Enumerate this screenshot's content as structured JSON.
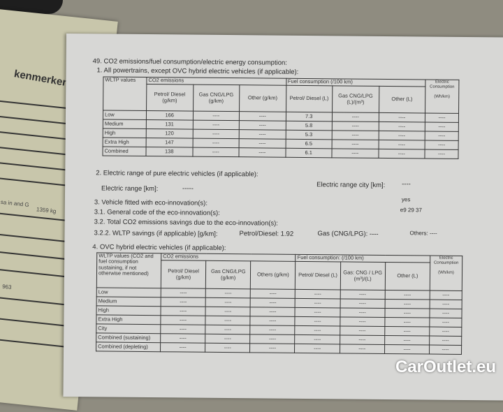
{
  "under_doc": {
    "heading": "kenmerken",
    "mass_label": "sa in\nand G",
    "mass_value": "1359 kg",
    "value2": "963"
  },
  "section49": {
    "title": "49. CO2 emissions/fuel consumption/electric energy consumption:",
    "sub1": "1. All powertrains, except OVC hybrid electric vehicles (if applicable):",
    "table1": {
      "h_wltp": "WLTP values",
      "h_co2": "CO2 emissions",
      "h_fuel": "Fuel consumption (/100 km)",
      "h_elec": "Electric Consumption",
      "cols": [
        "Petrol/ Diesel (g/km)",
        "Gas CNG/LPG (g/km)",
        "Other (g/km)",
        "Petrol/ Diesel (L)",
        "Gas CNG/LPG (L)/(m³)",
        "Other (L)",
        "(Wh/km)"
      ],
      "rows": [
        {
          "label": "Low",
          "co2": "166",
          "fuel": "7.3"
        },
        {
          "label": "Medium",
          "co2": "131",
          "fuel": "5.8"
        },
        {
          "label": "High",
          "co2": "120",
          "fuel": "5.3"
        },
        {
          "label": "Extra High",
          "co2": "147",
          "fuel": "6.5"
        },
        {
          "label": "Combined",
          "co2": "138",
          "fuel": "6.1"
        }
      ],
      "dash": "----"
    },
    "s2": "2. Electric range of pure electric vehicles (if applicable):",
    "s2_range": "Electric range [km]:",
    "s2_range_val": "-----",
    "s2_city": "Electric range city [km]:",
    "s2_city_val": "----",
    "s3": "3. Vehicle fitted with eco-innovation(s):",
    "s3_val": "yes",
    "s31": "3.1. General code of the eco-innovation(s):",
    "s31_val": "e9 29 37",
    "s32": "3.2. Total CO2 emissions savings due to the eco-innovation(s):",
    "s322": "3.2.2. WLTP savings (if applicable) [g/km]:",
    "s322_petrol": "Petrol/Diesel: 1.92",
    "s322_gas": "Gas (CNG/LPG): ----",
    "s322_others": "Others: ----",
    "sub4": "4. OVC hybrid electric vehicles (if applicable):",
    "table2": {
      "h_wltp": "WLTP values (CO2 and fuel consumption sustaining, if not otherwise mentioned)",
      "h_co2": "CO2 emissions",
      "h_fuel": "Fuel consumption: (/100 km)",
      "h_elec": "Electric Consumption",
      "cols": [
        "Petrol/ Diesel (g/km)",
        "Gas CNG/LPG (g/km)",
        "Others (g/km)",
        "Petrol/ Diesel (L)",
        "Gas: CNG / LPG (m³)/(L)",
        "Other (L)",
        "(Wh/km)"
      ],
      "rows": [
        "Low",
        "Medium",
        "High",
        "Extra High",
        "City",
        "Combined (sustaining)",
        "Combined (depleting)"
      ],
      "dash": "----"
    }
  },
  "watermark": "CarOutlet.eu"
}
